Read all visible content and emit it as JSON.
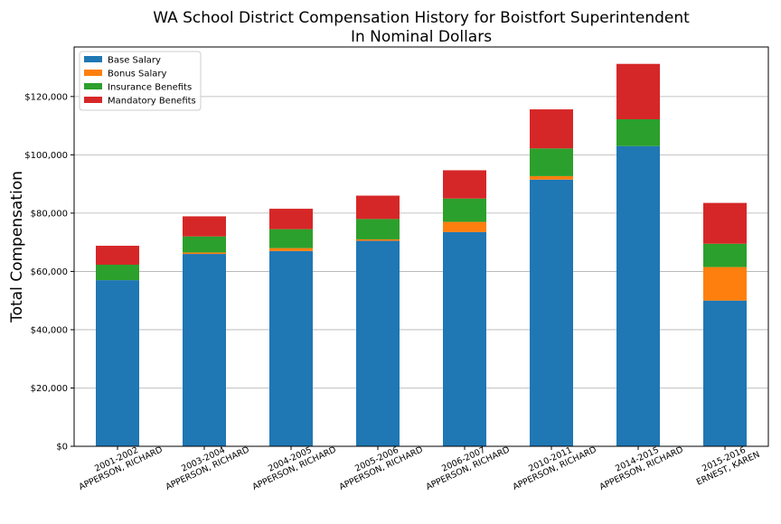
{
  "chart_data": {
    "type": "bar",
    "stacked": true,
    "title": "WA School District Compensation History for Boistfort Superintendent",
    "subtitle": "In Nominal Dollars",
    "xlabel": "",
    "ylabel": "Total Compensation",
    "ylim": [
      0,
      137000
    ],
    "yticks": [
      0,
      20000,
      40000,
      60000,
      80000,
      100000,
      120000
    ],
    "ytick_labels": [
      "$0",
      "$20,000",
      "$40,000",
      "$60,000",
      "$80,000",
      "$100,000",
      "$120,000"
    ],
    "grid": "horizontal",
    "legend_position": "top-left",
    "categories": [
      [
        "2001-2002",
        "APPERSON, RICHARD"
      ],
      [
        "2003-2004",
        "APPERSON, RICHARD"
      ],
      [
        "2004-2005",
        "APPERSON, RICHARD"
      ],
      [
        "2005-2006",
        "APPERSON, RICHARD"
      ],
      [
        "2006-2007",
        "APPERSON, RICHARD"
      ],
      [
        "2010-2011",
        "APPERSON, RICHARD"
      ],
      [
        "2014-2015",
        "APPERSON, RICHARD"
      ],
      [
        "2015-2016",
        "ERNEST, KAREN"
      ]
    ],
    "series": [
      {
        "name": "Base Salary",
        "color": "#1f77b4",
        "values": [
          57000,
          66000,
          67000,
          70500,
          73500,
          91500,
          103000,
          50000
        ]
      },
      {
        "name": "Bonus Salary",
        "color": "#ff7f0e",
        "values": [
          0,
          500,
          1000,
          500,
          3500,
          1200,
          0,
          11500
        ]
      },
      {
        "name": "Insurance Benefits",
        "color": "#2ca02c",
        "values": [
          5300,
          5500,
          6500,
          7000,
          8000,
          9500,
          9200,
          8000
        ]
      },
      {
        "name": "Mandatory Benefits",
        "color": "#d62728",
        "values": [
          6500,
          6900,
          7000,
          8000,
          9700,
          13400,
          19000,
          14000
        ]
      }
    ]
  }
}
